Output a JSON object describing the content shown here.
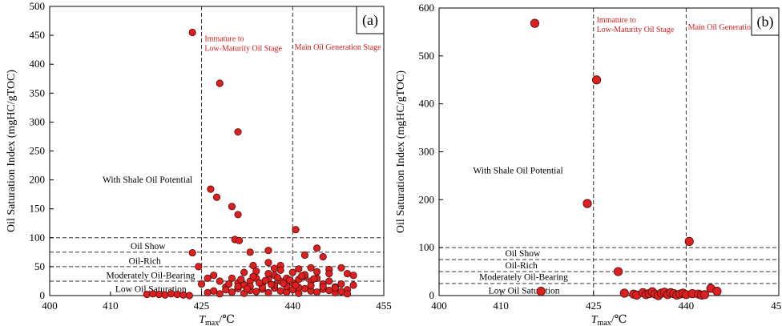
{
  "chart_data": [
    {
      "type": "scatter",
      "panel_label": "(a)",
      "xlabel": "Tmax/℃",
      "ylabel": "Oil Saturation Index (mgHC/gTOC)",
      "xlim": [
        400,
        455
      ],
      "ylim": [
        0,
        500
      ],
      "xticks": [
        400,
        410,
        425,
        440,
        455
      ],
      "yticks": [
        0,
        50,
        100,
        150,
        200,
        250,
        300,
        350,
        400,
        450,
        500
      ],
      "tick_labels_x": [
        "400",
        "410",
        "425",
        "440",
        "455"
      ],
      "tick_labels_y": [
        "0",
        "50",
        "100",
        "150",
        "200",
        "250",
        "300",
        "350",
        "400",
        "450",
        "500"
      ],
      "stage_lines": [
        425,
        440
      ],
      "stage_labels": [
        {
          "x": 425.5,
          "y": 440,
          "text": "Immature to",
          "text2": "Low-Maturity Oil Stage"
        },
        {
          "x": 440.3,
          "y": 425,
          "text": "Main Oil Generation Stage",
          "text2": ""
        }
      ],
      "thresholds": [
        100,
        75,
        50,
        25
      ],
      "region_labels": [
        {
          "x": 408.7,
          "y": 195,
          "text": "With Shale Oil Potential"
        },
        {
          "x": 413.3,
          "y": 80,
          "text": "Oil Show"
        },
        {
          "x": 413.0,
          "y": 55,
          "text": "Oil-Rich"
        },
        {
          "x": 409.3,
          "y": 30,
          "text": "Moderately Oil-Bearing"
        },
        {
          "x": 410.8,
          "y": 6,
          "text": "Low Oil Saturation"
        }
      ],
      "points": [
        [
          423.5,
          455
        ],
        [
          428,
          367
        ],
        [
          431,
          283
        ],
        [
          426.5,
          184
        ],
        [
          427.5,
          170
        ],
        [
          430,
          154
        ],
        [
          431,
          140
        ],
        [
          430.5,
          97
        ],
        [
          431.2,
          95
        ],
        [
          423.5,
          74
        ],
        [
          424.5,
          50
        ],
        [
          440.5,
          114
        ],
        [
          444,
          82
        ],
        [
          445,
          67
        ],
        [
          442,
          70
        ],
        [
          433,
          75
        ],
        [
          436,
          78
        ],
        [
          433.5,
          52
        ],
        [
          436,
          57
        ],
        [
          437,
          47
        ],
        [
          438,
          52
        ],
        [
          441,
          46
        ],
        [
          443,
          48
        ],
        [
          446,
          45
        ],
        [
          448,
          48
        ],
        [
          449,
          38
        ],
        [
          450,
          35
        ],
        [
          418,
          2
        ],
        [
          419,
          1
        ],
        [
          420,
          3
        ],
        [
          421,
          2
        ],
        [
          422,
          1
        ],
        [
          423,
          0
        ],
        [
          416,
          2
        ],
        [
          417,
          3
        ],
        [
          425,
          20
        ],
        [
          426,
          30
        ],
        [
          427,
          35
        ],
        [
          428,
          25
        ],
        [
          429,
          15
        ],
        [
          430,
          30
        ],
        [
          431,
          22
        ],
        [
          432,
          18
        ],
        [
          433,
          25
        ],
        [
          434,
          30
        ],
        [
          435,
          20
        ],
        [
          436,
          28
        ],
        [
          437,
          35
        ],
        [
          438,
          25
        ],
        [
          439,
          30
        ],
        [
          440,
          22
        ],
        [
          441,
          28
        ],
        [
          442,
          32
        ],
        [
          443,
          25
        ],
        [
          444,
          30
        ],
        [
          445,
          20
        ],
        [
          446,
          25
        ],
        [
          447,
          15
        ],
        [
          448,
          20
        ],
        [
          449,
          10
        ],
        [
          450,
          18
        ],
        [
          426,
          5
        ],
        [
          427,
          8
        ],
        [
          428,
          3
        ],
        [
          429,
          10
        ],
        [
          430,
          6
        ],
        [
          431,
          12
        ],
        [
          432,
          4
        ],
        [
          433,
          9
        ],
        [
          434,
          7
        ],
        [
          435,
          11
        ],
        [
          436,
          5
        ],
        [
          437,
          13
        ],
        [
          438,
          8
        ],
        [
          439,
          6
        ],
        [
          440,
          10
        ],
        [
          441,
          4
        ],
        [
          442,
          12
        ],
        [
          443,
          8
        ],
        [
          444,
          6
        ],
        [
          445,
          11
        ],
        [
          446,
          9
        ],
        [
          447,
          5
        ],
        [
          448,
          7
        ],
        [
          449,
          3
        ],
        [
          432,
          40
        ],
        [
          434,
          42
        ],
        [
          436,
          38
        ],
        [
          438,
          44
        ],
        [
          440,
          40
        ],
        [
          442,
          36
        ],
        [
          444,
          41
        ],
        [
          446,
          38
        ],
        [
          433,
          16
        ],
        [
          435,
          14
        ],
        [
          437,
          18
        ],
        [
          439,
          16
        ],
        [
          441,
          14
        ],
        [
          443,
          17
        ],
        [
          445,
          15
        ],
        [
          447,
          13
        ],
        [
          431.5,
          28
        ],
        [
          433.5,
          33
        ],
        [
          435.5,
          26
        ],
        [
          437.5,
          31
        ],
        [
          439.5,
          27
        ],
        [
          441.5,
          34
        ],
        [
          443.5,
          29
        ],
        [
          429.5,
          20
        ],
        [
          431,
          16
        ],
        [
          432.5,
          12
        ],
        [
          434.5,
          22
        ],
        [
          436.5,
          19
        ],
        [
          438.5,
          21
        ],
        [
          440.5,
          18
        ]
      ]
    },
    {
      "type": "scatter",
      "panel_label": "(b)",
      "xlabel": "Tmax/℃",
      "ylabel": "Oil Saturation Index (mgHC/gTOC)",
      "xlim": [
        400,
        455
      ],
      "ylim": [
        0,
        600
      ],
      "xticks": [
        400,
        410,
        425,
        440,
        455
      ],
      "yticks": [
        0,
        100,
        200,
        300,
        400,
        500,
        600
      ],
      "tick_labels_x": [
        "400",
        "410",
        "425",
        "440",
        "455"
      ],
      "tick_labels_y": [
        "0",
        "100",
        "200",
        "300",
        "400",
        "500",
        "600"
      ],
      "stage_lines": [
        425,
        440
      ],
      "stage_labels": [
        {
          "x": 425.5,
          "y": 570,
          "text": "Immature to",
          "text2": "Low-Maturity Oil Stage"
        },
        {
          "x": 440.3,
          "y": 555,
          "text": "Main Oil Generation Stage",
          "text2": ""
        }
      ],
      "thresholds": [
        100,
        75,
        50,
        25
      ],
      "region_labels": [
        {
          "x": 405.5,
          "y": 255,
          "text": "With Shale Oil Potential"
        },
        {
          "x": 410.7,
          "y": 82,
          "text": "Oil Show"
        },
        {
          "x": 410.7,
          "y": 57,
          "text": "Oil-Rich"
        },
        {
          "x": 406.5,
          "y": 33,
          "text": "Moderately Oil-Bearing"
        },
        {
          "x": 408.0,
          "y": 4,
          "text": "Low Oil Saturation"
        }
      ],
      "points": [
        [
          415.5,
          568
        ],
        [
          425.5,
          450
        ],
        [
          424,
          192
        ],
        [
          429,
          50
        ],
        [
          440.5,
          113
        ],
        [
          416.5,
          9
        ],
        [
          430,
          5
        ],
        [
          431.5,
          3
        ],
        [
          432,
          1
        ],
        [
          433,
          6
        ],
        [
          433.5,
          2
        ],
        [
          434,
          4
        ],
        [
          434.5,
          8
        ],
        [
          435,
          3
        ],
        [
          435.5,
          0
        ],
        [
          436,
          5
        ],
        [
          436.5,
          7
        ],
        [
          437,
          2
        ],
        [
          437.5,
          6
        ],
        [
          438,
          4
        ],
        [
          438.5,
          1
        ],
        [
          439,
          3
        ],
        [
          439.5,
          5
        ],
        [
          440,
          2
        ],
        [
          441,
          4
        ],
        [
          442,
          3
        ],
        [
          442.5,
          1
        ],
        [
          443,
          2
        ],
        [
          444,
          15
        ],
        [
          445,
          9
        ]
      ]
    }
  ]
}
